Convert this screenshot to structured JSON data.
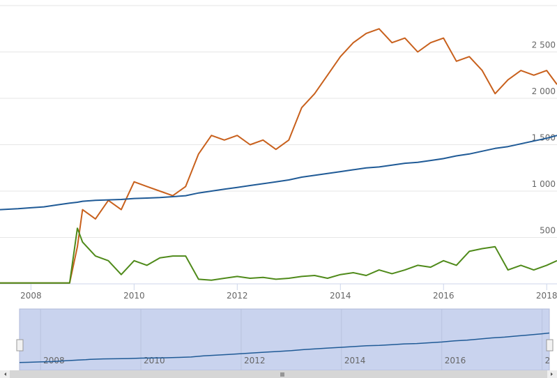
{
  "chart_data": {
    "type": "line",
    "x": [
      2007.4,
      2007.75,
      2008,
      2008.25,
      2008.5,
      2008.75,
      2008.9,
      2009,
      2009.25,
      2009.5,
      2009.75,
      2010,
      2010.25,
      2010.5,
      2010.75,
      2011,
      2011.25,
      2011.5,
      2011.75,
      2012,
      2012.25,
      2012.5,
      2012.75,
      2013,
      2013.25,
      2013.5,
      2013.75,
      2014,
      2014.25,
      2014.5,
      2014.75,
      2015,
      2015.25,
      2015.5,
      2015.75,
      2016,
      2016.25,
      2016.5,
      2016.75,
      2017,
      2017.25,
      2017.5,
      2017.75,
      2018,
      2018.2
    ],
    "series": [
      {
        "color": "#c8601c",
        "values": [
          10,
          10,
          10,
          10,
          10,
          10,
          400,
          800,
          700,
          900,
          800,
          1100,
          1050,
          1000,
          950,
          1050,
          1400,
          1600,
          1550,
          1600,
          1500,
          1550,
          1450,
          1550,
          1900,
          2050,
          2250,
          2450,
          2600,
          2700,
          2750,
          2600,
          2650,
          2500,
          2600,
          2650,
          2400,
          2450,
          2300,
          2050,
          2200,
          2300,
          2250,
          2300,
          2150
        ]
      },
      {
        "color": "#1f5a96",
        "values": [
          800,
          810,
          820,
          830,
          850,
          870,
          880,
          890,
          900,
          905,
          910,
          920,
          925,
          930,
          940,
          950,
          980,
          1000,
          1020,
          1040,
          1060,
          1080,
          1100,
          1120,
          1150,
          1170,
          1190,
          1210,
          1230,
          1250,
          1260,
          1280,
          1300,
          1310,
          1330,
          1350,
          1380,
          1400,
          1430,
          1460,
          1480,
          1510,
          1540,
          1570,
          1600
        ]
      },
      {
        "color": "#4f8a1a",
        "values": [
          10,
          10,
          10,
          10,
          10,
          10,
          600,
          450,
          300,
          250,
          100,
          250,
          200,
          280,
          300,
          300,
          50,
          40,
          60,
          80,
          60,
          70,
          50,
          60,
          80,
          90,
          60,
          100,
          120,
          90,
          150,
          110,
          150,
          200,
          180,
          250,
          200,
          350,
          380,
          400,
          150,
          200,
          150,
          200,
          250
        ]
      }
    ],
    "xlim": [
      2007.4,
      2018.2
    ],
    "xticks": [
      2008,
      2010,
      2012,
      2014,
      2016,
      2018
    ],
    "ylim": [
      0,
      3000
    ],
    "yticks": [
      500,
      {
        "value": 1000,
        "label": "1 000"
      },
      {
        "value": 1500,
        "label": "1 500"
      },
      {
        "value": 2000,
        "label": "2 000"
      },
      {
        "value": 2500,
        "label": "2 500"
      }
    ],
    "grid": true
  }
}
